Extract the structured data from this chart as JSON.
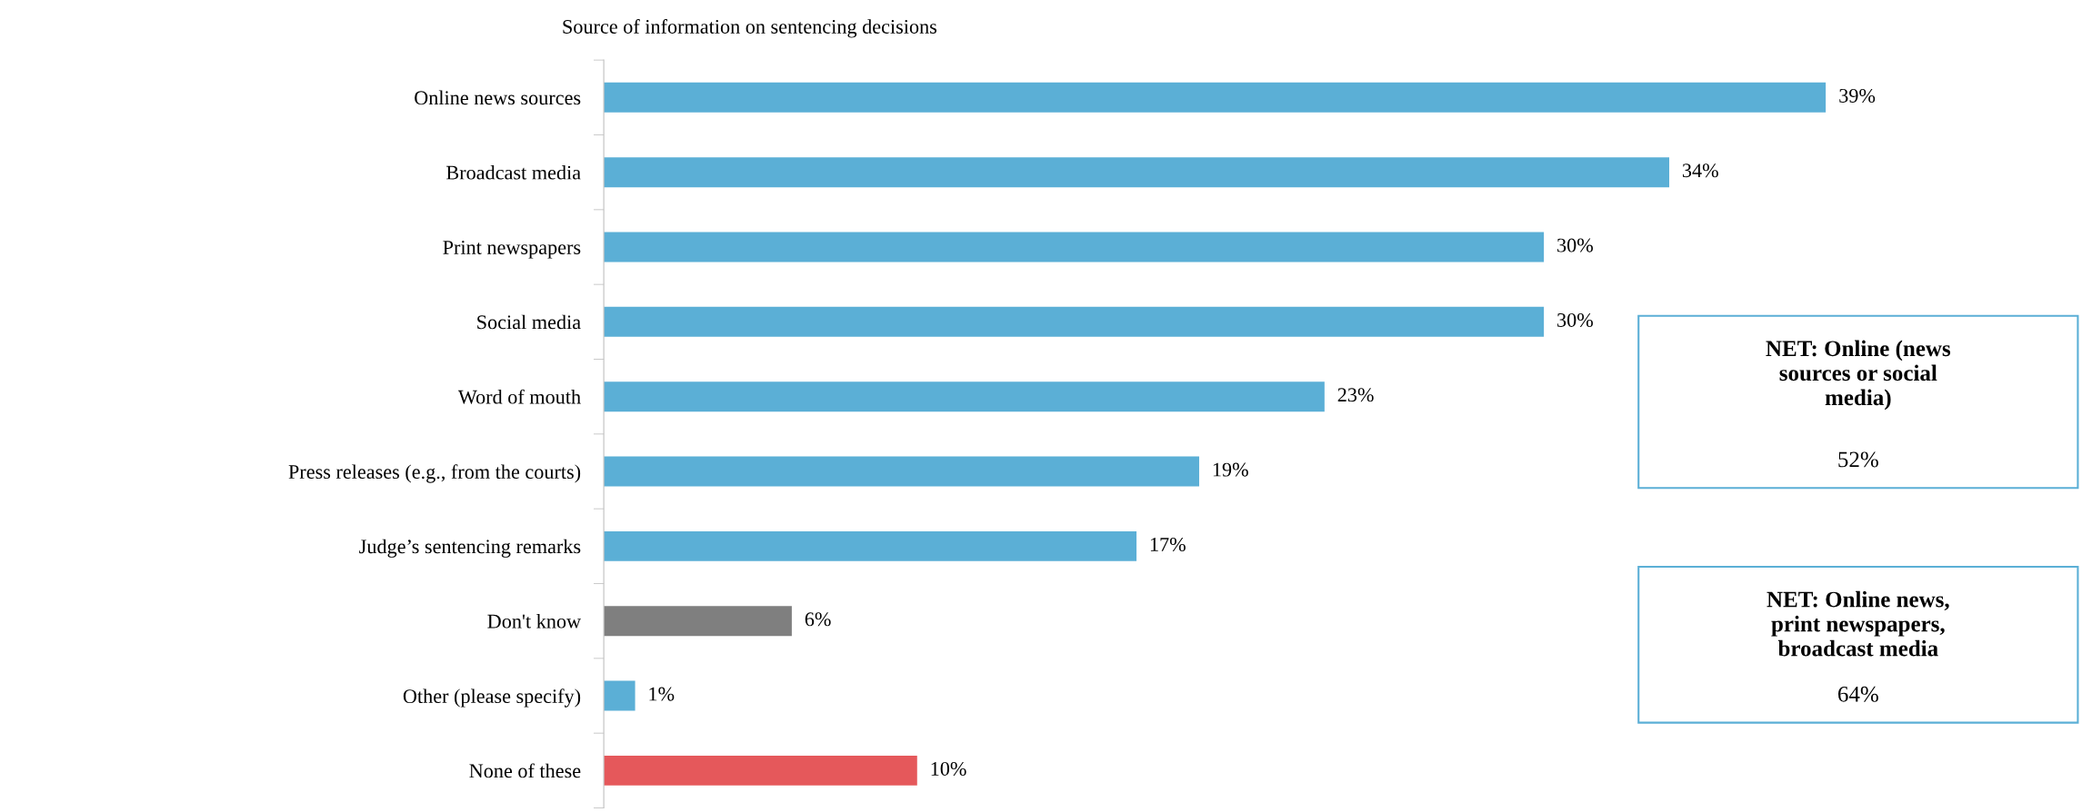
{
  "chart_data": {
    "type": "bar",
    "orientation": "horizontal",
    "title": "Source of information on sentencing decisions",
    "categories": [
      "Online news sources",
      "Broadcast media",
      "Print newspapers",
      "Social media",
      "Word of mouth",
      "Press releases (e.g., from the courts)",
      "Judge’s sentencing remarks",
      "Don't know",
      "Other (please specify)",
      "None of these"
    ],
    "values": [
      39,
      34,
      30,
      30,
      23,
      19,
      17,
      6,
      1,
      10
    ],
    "colors": [
      "#5bafd6",
      "#5bafd6",
      "#5bafd6",
      "#5bafd6",
      "#5bafd6",
      "#5bafd6",
      "#5bafd6",
      "#7f7f7f",
      "#5bafd6",
      "#e5585b"
    ],
    "value_labels": [
      "39%",
      "34%",
      "30%",
      "30%",
      "23%",
      "19%",
      "17%",
      "6%",
      "1%",
      "10%"
    ],
    "annotations": [
      "NET: Online (news\nsources or social\nmedia)",
      "52%",
      "NET: Online news,\nprint newspapers,\nbroadcast media",
      "64%"
    ],
    "grid": false,
    "legend": false
  }
}
